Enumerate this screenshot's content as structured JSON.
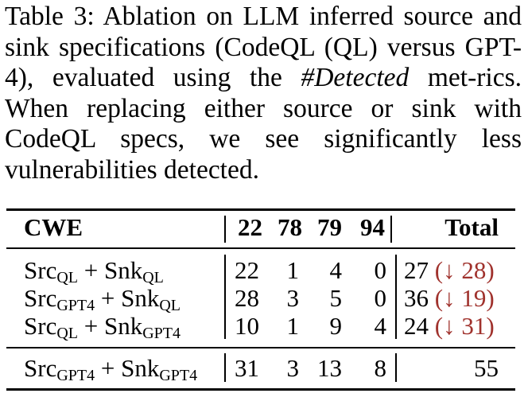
{
  "caption": {
    "label": "Table 3:",
    "text_part1": "Ablation on LLM inferred source and sink specifications (CodeQL (QL) versus GPT-4), evaluated using the ",
    "metric": "#Detected",
    "text_part2": " met-rics. When replacing either source or sink with CodeQL specs, we see significantly less vulnerabilities detected."
  },
  "table": {
    "headers": {
      "cwe": "CWE",
      "c22": "22",
      "c78": "78",
      "c79": "79",
      "c94": "94",
      "total": "Total"
    },
    "rows": [
      {
        "src_base": "Src",
        "src_sub": "QL",
        "plus": "+",
        "snk_base": "Snk",
        "snk_sub": "QL",
        "c22": "22",
        "c78": "1",
        "c79": "4",
        "c94": "0",
        "total": "27",
        "delta": "(↓ 28)"
      },
      {
        "src_base": "Src",
        "src_sub": "GPT4",
        "plus": "+",
        "snk_base": "Snk",
        "snk_sub": "QL",
        "c22": "28",
        "c78": "3",
        "c79": "5",
        "c94": "0",
        "total": "36",
        "delta": "(↓ 19)"
      },
      {
        "src_base": "Src",
        "src_sub": "QL",
        "plus": "+",
        "snk_base": "Snk",
        "snk_sub": "GPT4",
        "c22": "10",
        "c78": "1",
        "c79": "9",
        "c94": "4",
        "total": "24",
        "delta": "(↓ 31)"
      },
      {
        "src_base": "Src",
        "src_sub": "GPT4",
        "plus": "+",
        "snk_base": "Snk",
        "snk_sub": "GPT4",
        "c22": "31",
        "c78": "3",
        "c79": "13",
        "c94": "8",
        "total": "55",
        "delta": ""
      }
    ]
  },
  "colors": {
    "delta": "#a0322d"
  }
}
